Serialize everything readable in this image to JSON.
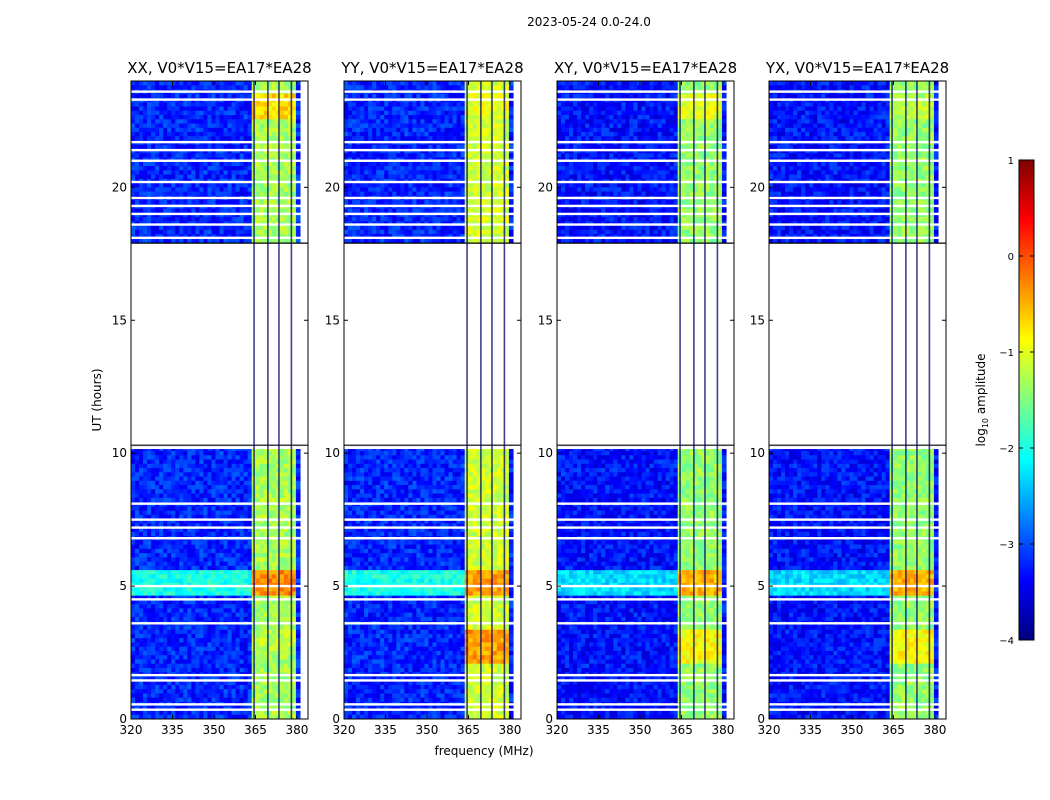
{
  "chart_data": {
    "type": "heatmap",
    "figure_title": "2023-05-24 0.0-24.0",
    "xlabel": "frequency (MHz)",
    "ylabel": "UT (hours)",
    "xlim": [
      320,
      384
    ],
    "ylim": [
      0,
      24
    ],
    "xticks": [
      320,
      335,
      350,
      365,
      380
    ],
    "yticks": [
      0,
      5,
      10,
      15,
      20
    ],
    "colorbar": {
      "label_prefix": "log",
      "label_sub": "10",
      "label_suffix": " amplitude",
      "range": [
        -4,
        1
      ],
      "ticks": [
        1,
        0,
        -1,
        -2,
        -3,
        -4
      ],
      "tick_labels": [
        "1",
        "0",
        "−1",
        "−2",
        "−3",
        "−4"
      ],
      "colormap": "jet",
      "stops": [
        "#00007f",
        "#0000ff",
        "#007fff",
        "#00ffff",
        "#7fff7f",
        "#ffff00",
        "#ff7f00",
        "#ff0000",
        "#7f0000"
      ]
    },
    "no_data_ut": [
      [
        10.3,
        17.9
      ]
    ],
    "row_gaps_ut": [
      0.35,
      0.55,
      1.45,
      1.65,
      3.6,
      4.5,
      5.0,
      6.8,
      7.2,
      7.5,
      8.1,
      10.2,
      18.1,
      18.6,
      19.0,
      19.3,
      19.6,
      20.2,
      21.0,
      21.4,
      21.7,
      23.3,
      23.6
    ],
    "band_region_mhz": [
      363,
      380
    ],
    "band_channels_mhz": [
      364.5,
      369.5,
      373.5,
      378
    ],
    "panels": [
      {
        "title": "XX, V0*V15=EA17*EA28",
        "band_level_log10_amp": -1.3,
        "background_level_log10_amp": -3.2,
        "features": [
          {
            "ut": [
              4.6,
              5.6
            ],
            "freq": [
              320,
              363
            ],
            "log10_amp": -2.0
          },
          {
            "ut": [
              4.6,
              5.6
            ],
            "freq": [
              363,
              380
            ],
            "log10_amp": -0.3
          },
          {
            "ut": [
              2.4,
              3.4
            ],
            "freq": [
              363,
              380
            ],
            "log10_amp": -1.2
          },
          {
            "ut": [
              22.5,
              23.5
            ],
            "freq": [
              363,
              380
            ],
            "log10_amp": -0.7
          }
        ]
      },
      {
        "title": "YY, V0*V15=EA17*EA28",
        "band_level_log10_amp": -1.1,
        "background_level_log10_amp": -3.2,
        "features": [
          {
            "ut": [
              4.6,
              5.6
            ],
            "freq": [
              320,
              363
            ],
            "log10_amp": -2.0
          },
          {
            "ut": [
              4.6,
              5.6
            ],
            "freq": [
              363,
              380
            ],
            "log10_amp": -0.4
          },
          {
            "ut": [
              2.0,
              3.4
            ],
            "freq": [
              363,
              380
            ],
            "log10_amp": -0.4
          },
          {
            "ut": [
              22.5,
              23.5
            ],
            "freq": [
              363,
              380
            ],
            "log10_amp": -1.0
          }
        ]
      },
      {
        "title": "XY, V0*V15=EA17*EA28",
        "band_level_log10_amp": -1.4,
        "background_level_log10_amp": -3.3,
        "features": [
          {
            "ut": [
              4.6,
              5.6
            ],
            "freq": [
              320,
              363
            ],
            "log10_amp": -2.3
          },
          {
            "ut": [
              4.6,
              5.6
            ],
            "freq": [
              363,
              380
            ],
            "log10_amp": -0.5
          },
          {
            "ut": [
              2.0,
              3.4
            ],
            "freq": [
              363,
              380
            ],
            "log10_amp": -0.9
          },
          {
            "ut": [
              22.5,
              23.5
            ],
            "freq": [
              363,
              380
            ],
            "log10_amp": -1.0
          }
        ]
      },
      {
        "title": "YX, V0*V15=EA17*EA28",
        "band_level_log10_amp": -1.4,
        "background_level_log10_amp": -3.3,
        "features": [
          {
            "ut": [
              4.6,
              5.6
            ],
            "freq": [
              320,
              363
            ],
            "log10_amp": -2.3
          },
          {
            "ut": [
              4.6,
              5.6
            ],
            "freq": [
              363,
              380
            ],
            "log10_amp": -0.5
          },
          {
            "ut": [
              2.0,
              3.4
            ],
            "freq": [
              363,
              380
            ],
            "log10_amp": -0.9
          },
          {
            "ut": [
              22.5,
              23.5
            ],
            "freq": [
              363,
              380
            ],
            "log10_amp": -1.2
          }
        ]
      }
    ]
  }
}
